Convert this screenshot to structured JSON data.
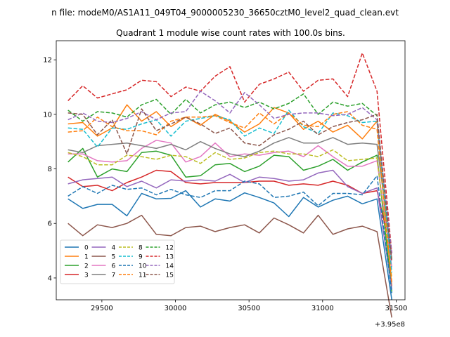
{
  "chart_data": {
    "type": "line",
    "suptitle": "n file: modeM0/AS1A11_049T04_9000005230_36650cztM0_level2_quad_clean.evt",
    "title": "Quadrant 1 module wise count rates with 100.0s bins.",
    "xlabel": "",
    "ylabel": "",
    "x_offset_label": "+3.95e8",
    "xlim": [
      29190,
      31560
    ],
    "ylim": [
      3.2,
      12.7
    ],
    "xticks": [
      29500,
      30000,
      30500,
      31000,
      31500
    ],
    "yticks": [
      4,
      6,
      8,
      10,
      12
    ],
    "legend_location": "lower-left",
    "legend_columns": 4,
    "x": [
      29270,
      29370,
      29470,
      29570,
      29670,
      29770,
      29870,
      29970,
      30070,
      30170,
      30270,
      30370,
      30470,
      30570,
      30670,
      30770,
      30870,
      30970,
      31070,
      31170,
      31270,
      31370,
      31470
    ],
    "series": [
      {
        "name": "0",
        "color": "#1f77b4",
        "dashed": false,
        "values": [
          6.9,
          6.55,
          6.7,
          6.7,
          6.28,
          7.1,
          6.9,
          6.92,
          7.2,
          6.6,
          6.9,
          6.82,
          7.12,
          6.95,
          6.75,
          6.25,
          6.95,
          6.6,
          6.85,
          7.0,
          6.72,
          6.9,
          3.2
        ]
      },
      {
        "name": "1",
        "color": "#ff7f0e",
        "dashed": false,
        "values": [
          9.65,
          9.7,
          9.2,
          9.5,
          10.35,
          9.75,
          10.1,
          9.55,
          9.9,
          9.6,
          10.0,
          9.75,
          9.35,
          9.65,
          10.25,
          10.05,
          9.45,
          9.75,
          9.35,
          9.6,
          9.1,
          9.75,
          3.7
        ]
      },
      {
        "name": "2",
        "color": "#2ca02c",
        "dashed": false,
        "values": [
          8.25,
          8.75,
          7.7,
          8.0,
          7.9,
          8.6,
          8.65,
          8.5,
          7.7,
          7.75,
          8.15,
          8.2,
          7.9,
          8.1,
          8.5,
          8.45,
          7.95,
          8.1,
          8.35,
          7.95,
          8.25,
          8.5,
          3.5
        ]
      },
      {
        "name": "3",
        "color": "#d62728",
        "dashed": false,
        "values": [
          7.7,
          7.35,
          7.4,
          7.2,
          7.5,
          7.7,
          7.95,
          7.9,
          7.5,
          7.45,
          7.5,
          7.5,
          7.5,
          7.55,
          7.55,
          7.4,
          7.45,
          7.4,
          7.55,
          7.4,
          7.1,
          7.2,
          4.9
        ]
      },
      {
        "name": "4",
        "color": "#9467bd",
        "dashed": false,
        "values": [
          7.45,
          7.6,
          7.65,
          7.7,
          7.35,
          7.55,
          7.3,
          7.6,
          7.55,
          7.6,
          7.55,
          7.8,
          7.5,
          7.7,
          7.65,
          7.55,
          7.6,
          7.85,
          7.95,
          7.35,
          7.1,
          7.3,
          3.6
        ]
      },
      {
        "name": "5",
        "color": "#8c564b",
        "dashed": false,
        "values": [
          6.0,
          5.55,
          5.95,
          5.85,
          6.0,
          6.3,
          5.6,
          5.55,
          5.85,
          5.9,
          5.7,
          5.85,
          5.95,
          5.65,
          6.2,
          5.95,
          5.65,
          6.3,
          5.6,
          5.8,
          5.9,
          5.7,
          2.55
        ]
      },
      {
        "name": "6",
        "color": "#e377c2",
        "dashed": false,
        "values": [
          8.55,
          8.55,
          8.3,
          8.25,
          8.3,
          8.75,
          9.05,
          8.95,
          8.25,
          8.45,
          8.95,
          8.45,
          8.55,
          8.5,
          8.6,
          8.65,
          8.45,
          8.85,
          8.45,
          8.1,
          8.1,
          8.3,
          4.4
        ]
      },
      {
        "name": "7",
        "color": "#7f7f7f",
        "dashed": false,
        "values": [
          8.7,
          8.6,
          8.85,
          8.9,
          8.95,
          8.85,
          8.75,
          8.9,
          8.7,
          9.0,
          8.75,
          8.55,
          8.45,
          8.65,
          8.95,
          9.15,
          8.95,
          8.95,
          9.15,
          8.9,
          8.95,
          8.9,
          4.7
        ]
      },
      {
        "name": "8",
        "color": "#bcbd22",
        "dashed": true,
        "values": [
          8.6,
          8.45,
          8.15,
          8.15,
          8.5,
          8.45,
          8.35,
          8.5,
          8.45,
          8.2,
          8.6,
          8.35,
          8.4,
          8.6,
          8.65,
          8.55,
          8.55,
          8.45,
          8.7,
          8.3,
          8.35,
          8.4,
          4.0
        ]
      },
      {
        "name": "9",
        "color": "#17becf",
        "dashed": true,
        "values": [
          9.5,
          9.45,
          8.8,
          9.5,
          9.45,
          9.65,
          9.8,
          9.2,
          9.75,
          9.85,
          9.95,
          9.8,
          9.2,
          9.5,
          9.3,
          10.15,
          9.55,
          9.3,
          10.05,
          9.95,
          9.7,
          9.75,
          4.2
        ]
      },
      {
        "name": "10",
        "color": "#1f77b4",
        "dashed": true,
        "values": [
          7.0,
          7.35,
          7.1,
          7.4,
          7.25,
          7.3,
          7.05,
          7.25,
          7.05,
          6.95,
          7.2,
          7.2,
          7.55,
          7.45,
          6.95,
          7.0,
          7.15,
          6.65,
          7.1,
          7.1,
          7.05,
          7.75,
          3.45
        ]
      },
      {
        "name": "11",
        "color": "#ff7f0e",
        "dashed": true,
        "values": [
          9.35,
          9.4,
          9.9,
          9.55,
          9.4,
          9.4,
          9.25,
          9.75,
          9.9,
          9.9,
          9.95,
          9.7,
          9.5,
          10.05,
          9.65,
          10.05,
          9.6,
          9.55,
          10.0,
          10.1,
          9.6,
          9.45,
          3.85
        ]
      },
      {
        "name": "12",
        "color": "#2ca02c",
        "dashed": true,
        "values": [
          10.15,
          9.75,
          10.1,
          10.05,
          9.9,
          10.35,
          10.55,
          10.0,
          10.55,
          10.05,
          10.35,
          10.45,
          10.25,
          10.45,
          10.2,
          10.4,
          10.75,
          10.0,
          10.45,
          10.3,
          10.4,
          9.95,
          4.6
        ]
      },
      {
        "name": "13",
        "color": "#d62728",
        "dashed": true,
        "values": [
          10.5,
          11.05,
          10.6,
          10.75,
          10.9,
          11.25,
          11.2,
          10.65,
          11.0,
          10.85,
          11.4,
          11.75,
          10.45,
          11.1,
          11.3,
          11.55,
          10.85,
          11.25,
          11.3,
          10.65,
          12.25,
          10.85,
          4.9
        ]
      },
      {
        "name": "14",
        "color": "#9467bd",
        "dashed": true,
        "values": [
          9.8,
          10.05,
          9.75,
          9.7,
          9.85,
          10.1,
          9.8,
          10.05,
          10.1,
          10.85,
          10.5,
          10.05,
          10.8,
          10.35,
          9.85,
          10.0,
          10.05,
          10.05,
          9.95,
          10.0,
          10.25,
          9.8,
          4.9
        ]
      },
      {
        "name": "15",
        "color": "#8c564b",
        "dashed": true,
        "values": [
          10.05,
          10.0,
          9.25,
          9.8,
          8.55,
          10.2,
          9.4,
          9.65,
          9.9,
          9.65,
          9.3,
          9.5,
          8.95,
          8.85,
          9.25,
          9.45,
          9.75,
          9.25,
          9.55,
          9.7,
          9.8,
          10.0,
          4.6
        ]
      }
    ]
  }
}
